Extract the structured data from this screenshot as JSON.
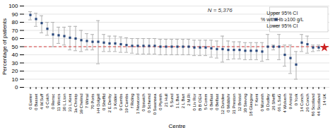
{
  "chart_data": {
    "type": "scatter",
    "xlabel": "Centre",
    "ylabel": "Percentage of patients",
    "ylim": [
      0,
      100
    ],
    "yticks": [
      0,
      10,
      20,
      30,
      40,
      50,
      60,
      70,
      80,
      90,
      100
    ],
    "grid": true,
    "legend": "upper right",
    "categories": [
      "0 Exeter",
      "0 Basset",
      "4 W.Suff",
      "0 Colch",
      "0 Rensc",
      "11 Worcs",
      "30 L.Lton",
      "33 L.Kent",
      "3a Christp",
      "39 Chelmd",
      "7 Wirral",
      "70 Ports",
      "H4 Dolgell",
      "0 Sheffld",
      "2 E.Derby",
      "3 Kidder",
      "9 Cambs",
      "19 Cambs",
      "f Riding",
      "1 Newcord",
      "0 Ipswich",
      "0 Schemd",
      "0 Swansea",
      "0 Plymth",
      "21 Hull",
      "5 Sund",
      "1 L.Bart",
      "2 L Bart",
      "2 M.Ri",
      "0 Liv Ror",
      "B B OEH",
      "5 Comm",
      "6 Belfast",
      "0 Belfast",
      "12 Dundee",
      "0 Middshr",
      "31 Preston",
      "12 Bristol",
      "30 Stevng",
      "18 Glasgow",
      "T Kent",
      "0 Monmh",
      "0 Dudley",
      "26 Sheffl",
      "66 L.SuG",
      "4 Wolverh",
      "9 Anstrd",
      "0 York",
      "14 Conch",
      "26 Conch",
      "86 Scotland",
      "44 Scotland",
      "14 UK"
    ],
    "series": [
      {
        "name": "Upper 95% CI",
        "color": "#b0b0b0",
        "marker": "dash",
        "values": [
          93,
          91,
          88,
          80,
          80,
          74,
          74,
          75,
          75,
          70,
          66,
          65,
          82,
          65,
          63,
          63,
          62,
          61,
          60,
          60,
          60,
          60,
          60,
          59,
          59,
          59,
          59,
          59,
          59,
          58,
          58,
          58,
          58,
          57,
          63,
          57,
          56,
          56,
          55,
          55,
          55,
          55,
          65,
          52,
          65,
          52,
          52,
          44,
          65,
          63,
          52,
          52,
          null
        ]
      },
      {
        "name": "% with Hb ≥100 g/L",
        "color": "#2b4a7e",
        "marker": "square",
        "values": [
          89,
          84,
          79,
          72,
          65,
          64,
          63,
          61,
          60,
          58,
          57,
          56,
          56,
          55,
          54,
          54,
          53,
          52,
          51,
          51,
          51,
          51,
          51,
          50,
          50,
          50,
          50,
          50,
          50,
          49,
          49,
          49,
          48,
          47,
          47,
          46,
          46,
          46,
          45,
          45,
          45,
          44,
          50,
          50,
          50,
          40,
          36,
          28,
          55,
          53,
          49,
          49,
          null
        ]
      },
      {
        "name": "Lower 95% CI",
        "color": "#b0b0b0",
        "marker": "dash",
        "values": [
          83,
          75,
          67,
          64,
          50,
          54,
          52,
          46,
          45,
          44,
          46,
          46,
          29,
          44,
          44,
          44,
          43,
          43,
          42,
          41,
          41,
          41,
          41,
          40,
          40,
          40,
          40,
          40,
          40,
          39,
          39,
          39,
          37,
          36,
          31,
          34,
          35,
          35,
          34,
          34,
          34,
          32,
          34,
          46,
          34,
          26,
          17,
          10,
          44,
          42,
          44,
          45,
          null
        ]
      },
      {
        "color": "#cc2222",
        "marker": "star",
        "values": [
          null,
          null,
          null,
          null,
          null,
          null,
          null,
          null,
          null,
          null,
          null,
          null,
          null,
          null,
          null,
          null,
          null,
          null,
          null,
          null,
          null,
          null,
          null,
          null,
          null,
          null,
          null,
          null,
          null,
          null,
          null,
          null,
          null,
          null,
          null,
          null,
          null,
          null,
          null,
          null,
          null,
          null,
          null,
          null,
          null,
          null,
          null,
          null,
          null,
          null,
          null,
          null,
          49
        ]
      }
    ],
    "reference_line": {
      "y": 50,
      "color": "#d94040",
      "line_style": "dashed"
    },
    "annotations": [
      {
        "text": "N = 5,376"
      }
    ]
  }
}
